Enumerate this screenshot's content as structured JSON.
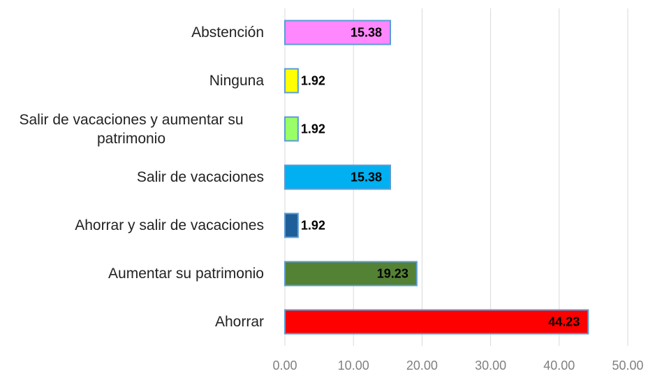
{
  "chart_data": {
    "type": "bar",
    "orientation": "horizontal",
    "categories": [
      "Abstención",
      "Ninguna",
      "Salir de vacaciones y aumentar su patrimonio",
      "Salir de vacaciones",
      "Ahorrar y salir de vacaciones",
      "Aumentar su patrimonio",
      "Ahorrar"
    ],
    "values": [
      15.38,
      1.92,
      1.92,
      15.38,
      1.92,
      19.23,
      44.23
    ],
    "colors": [
      "#ff88ff",
      "#ffff00",
      "#99ff66",
      "#00b0f0",
      "#1f5f99",
      "#548235",
      "#ff0000"
    ],
    "xlim": [
      0,
      50
    ],
    "xticks": [
      {
        "value": 0,
        "label": "0.00"
      },
      {
        "value": 10,
        "label": "10.00"
      },
      {
        "value": 20,
        "label": "20.00"
      },
      {
        "value": 30,
        "label": "30.00"
      },
      {
        "value": 40,
        "label": "40.00"
      },
      {
        "value": 50,
        "label": "50.00"
      }
    ],
    "grid": true
  }
}
